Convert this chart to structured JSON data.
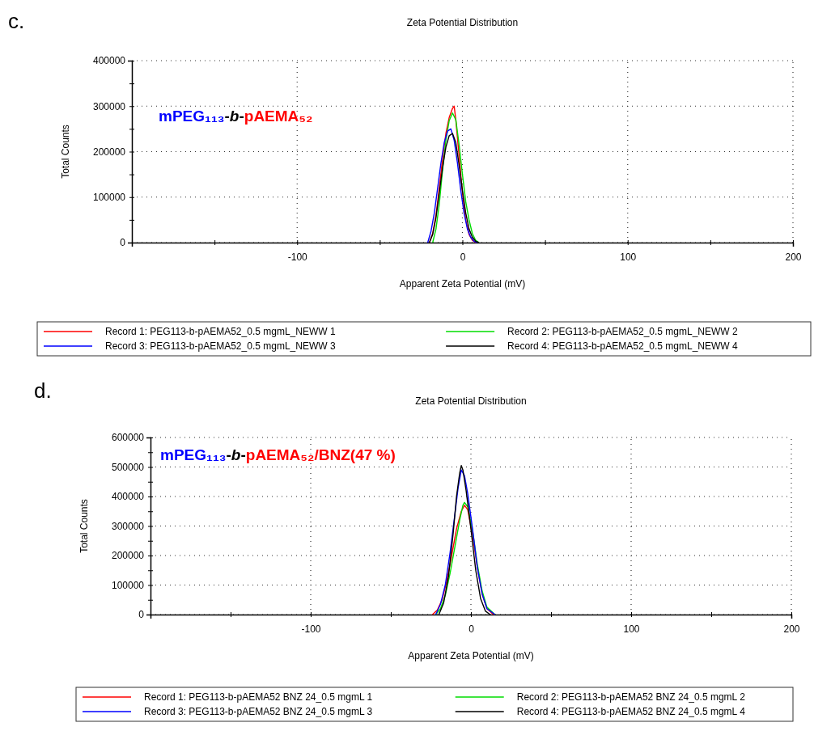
{
  "chart_data": [
    {
      "type": "line",
      "title": "Zeta Potential Distribution",
      "xlabel": "Apparent Zeta Potential (mV)",
      "ylabel": "Total Counts",
      "annotations": [
        "c.",
        "mPEG₁₁₃-b-pAEMA₅₂"
      ],
      "xlim": [
        -200,
        200
      ],
      "ylim": [
        0,
        400000
      ],
      "xticks": [
        {
          "value": -150,
          "label": null
        },
        -100,
        {
          "value": -50,
          "label": null
        },
        0,
        {
          "value": 50,
          "label": null
        },
        100,
        {
          "value": 150,
          "label": null
        },
        200
      ],
      "yticks": [
        0,
        {
          "value": 50000,
          "label": null
        },
        100000,
        {
          "value": 150000,
          "label": null
        },
        200000,
        {
          "value": 250000,
          "label": null
        },
        300000,
        {
          "value": 350000,
          "label": null
        },
        400000
      ],
      "grid": true,
      "legend": "bottom",
      "line_style": "solid",
      "series": [
        {
          "name": "Record 1: PEG113-b-pAEMA52_0.5 mgmL_NEWW 1",
          "color": "#ff0000",
          "x": [
            -20,
            -18,
            -16,
            -14,
            -12,
            -10,
            -8,
            -6,
            -5,
            -4,
            -2,
            0,
            2,
            4,
            6,
            8
          ],
          "values": [
            0,
            20000,
            60000,
            120000,
            185000,
            240000,
            275000,
            295000,
            300000,
            270000,
            190000,
            110000,
            50000,
            18000,
            5000,
            0
          ]
        },
        {
          "name": "Record 2: PEG113-b-pAEMA52_0.5 mgmL_NEWW 2",
          "color": "#00dd00",
          "x": [
            -18,
            -16,
            -14,
            -12,
            -10,
            -8,
            -6,
            -4,
            -2,
            0,
            2,
            4,
            6,
            8,
            10
          ],
          "values": [
            0,
            30000,
            85000,
            160000,
            225000,
            268000,
            285000,
            270000,
            215000,
            150000,
            90000,
            50000,
            20000,
            5000,
            0
          ]
        },
        {
          "name": "Record 3: PEG113-b-pAEMA52_0.5 mgmL_NEWW 3",
          "color": "#0000ff",
          "x": [
            -21,
            -19,
            -17,
            -15,
            -13,
            -11,
            -9,
            -7,
            -5,
            -3,
            -1,
            1,
            3,
            5,
            7,
            9
          ],
          "values": [
            0,
            25000,
            65000,
            120000,
            175000,
            220000,
            245000,
            250000,
            225000,
            175000,
            115000,
            65000,
            30000,
            12000,
            3000,
            0
          ]
        },
        {
          "name": "Record 4: PEG113-b-pAEMA52_0.5 mgmL_NEWW 4",
          "color": "#000000",
          "x": [
            -20,
            -18,
            -16,
            -14,
            -12,
            -10,
            -8,
            -6,
            -4,
            -2,
            0,
            2,
            4,
            6,
            8,
            10
          ],
          "values": [
            0,
            18000,
            55000,
            110000,
            165000,
            210000,
            235000,
            240000,
            220000,
            170000,
            115000,
            65000,
            30000,
            12000,
            3000,
            0
          ]
        }
      ]
    },
    {
      "type": "line",
      "title": "Zeta Potential Distribution",
      "xlabel": "Apparent Zeta Potential (mV)",
      "ylabel": "Total Counts",
      "annotations": [
        "d.",
        "mPEG₁₁₃-b-pAEMA₅₂/BNZ(47 %)"
      ],
      "xlim": [
        -200,
        200
      ],
      "ylim": [
        0,
        600000
      ],
      "xticks": [
        {
          "value": -150,
          "label": null
        },
        -100,
        {
          "value": -50,
          "label": null
        },
        0,
        {
          "value": 50,
          "label": null
        },
        100,
        {
          "value": 150,
          "label": null
        },
        200
      ],
      "yticks": [
        0,
        {
          "value": 50000,
          "label": null
        },
        100000,
        {
          "value": 150000,
          "label": null
        },
        200000,
        {
          "value": 250000,
          "label": null
        },
        300000,
        {
          "value": 350000,
          "label": null
        },
        400000,
        {
          "value": 450000,
          "label": null
        },
        500000,
        {
          "value": 550000,
          "label": null
        },
        600000
      ],
      "grid": true,
      "legend": "bottom",
      "line_style": "solid",
      "series": [
        {
          "name": "Record 1: PEG113-b-pAEMA52 BNZ 24_0.5 mgmL 1",
          "color": "#ff0000",
          "x": [
            -24,
            -21,
            -18,
            -15,
            -12,
            -9,
            -6,
            -4,
            -2,
            1,
            4,
            7,
            10,
            14
          ],
          "values": [
            0,
            15000,
            50000,
            115000,
            200000,
            290000,
            350000,
            370000,
            355000,
            270000,
            160000,
            70000,
            20000,
            0
          ]
        },
        {
          "name": "Record 2: PEG113-b-pAEMA52 BNZ 24_0.5 mgmL 2",
          "color": "#00dd00",
          "x": [
            -22,
            -19,
            -16,
            -13,
            -10,
            -7,
            -5,
            -4,
            -2,
            1,
            4,
            7,
            10,
            15
          ],
          "values": [
            0,
            20000,
            65000,
            140000,
            230000,
            320000,
            370000,
            380000,
            365000,
            285000,
            170000,
            80000,
            25000,
            0
          ]
        },
        {
          "name": "Record 3: PEG113-b-pAEMA52 BNZ 24_0.5 mgmL 3",
          "color": "#0000ff",
          "x": [
            -22,
            -19,
            -16,
            -13,
            -10,
            -8,
            -6,
            -4,
            -2,
            1,
            4,
            7,
            10,
            15
          ],
          "values": [
            0,
            35000,
            100000,
            210000,
            340000,
            430000,
            490000,
            470000,
            410000,
            290000,
            160000,
            70000,
            20000,
            0
          ]
        },
        {
          "name": "Record 4: PEG113-b-pAEMA52 BNZ 24_0.5 mgmL 4",
          "color": "#000000",
          "x": [
            -20,
            -17,
            -14,
            -11,
            -9,
            -7,
            -6,
            -5,
            -3,
            0,
            3,
            6,
            9,
            12
          ],
          "values": [
            0,
            40000,
            130000,
            280000,
            400000,
            480000,
            505000,
            490000,
            420000,
            290000,
            150000,
            55000,
            12000,
            0
          ]
        }
      ]
    }
  ]
}
